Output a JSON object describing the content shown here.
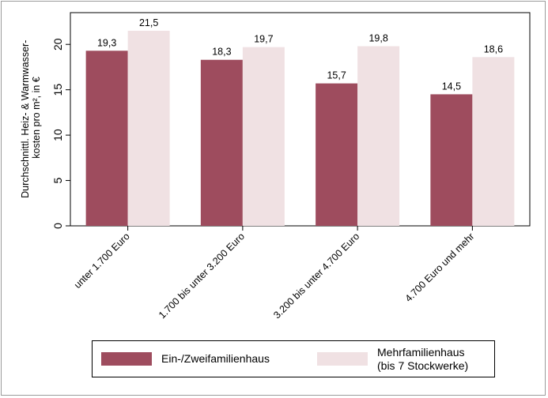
{
  "chart_data": {
    "type": "bar",
    "ylabel_line1": "Durchschnittl. Heiz- & Warmwasser-",
    "ylabel_line2": "kosten pro m², in €",
    "categories": [
      "unter 1.700 Euro",
      "1.700 bis unter 3.200 Euro",
      "3.200 bis unter 4.700 Euro",
      "4.700 Euro und mehr"
    ],
    "series": [
      {
        "name": "Ein-/Zweifamilienhaus",
        "values": [
          19.3,
          18.3,
          15.7,
          14.5
        ],
        "labels": [
          "19,3",
          "18,3",
          "15,7",
          "14,5"
        ],
        "color": "#9e4c5e"
      },
      {
        "name": "Mehrfamilienhaus\n(bis 7 Stockwerke)",
        "values": [
          21.5,
          19.7,
          19.8,
          18.6
        ],
        "labels": [
          "21,5",
          "19,7",
          "19,8",
          "18,6"
        ],
        "color": "#f0e1e3"
      }
    ],
    "yticks": [
      0,
      5,
      10,
      15,
      20
    ],
    "ytick_labels": [
      "0",
      "5",
      "10",
      "15",
      "20"
    ],
    "ylim": [
      0,
      23.5
    ],
    "grid": false,
    "legend_position": "bottom"
  }
}
